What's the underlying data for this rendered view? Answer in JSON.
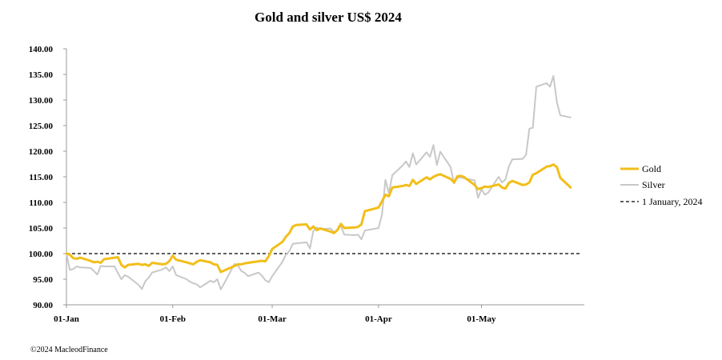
{
  "chart_data": {
    "type": "line",
    "title": "Gold and silver  US$ 2024",
    "xlabel": "",
    "ylabel": "",
    "ylim": [
      90,
      140
    ],
    "yticks": [
      "90.00",
      "95.00",
      "100.00",
      "105.00",
      "110.00",
      "115.00",
      "120.00",
      "125.00",
      "130.00",
      "135.00",
      "140.00"
    ],
    "xticks": [
      {
        "label": "01-Jan",
        "date": "2024-01-01"
      },
      {
        "label": "01-Feb",
        "date": "2024-02-01"
      },
      {
        "label": "01-Mar",
        "date": "2024-03-01"
      },
      {
        "label": "01-Apr",
        "date": "2024-04-01"
      },
      {
        "label": "01-May",
        "date": "2024-05-01"
      }
    ],
    "xlim": [
      "2024-01-01",
      "2024-05-31"
    ],
    "grid": false,
    "legend_position": "right",
    "series": [
      {
        "name": "Gold",
        "color": "#F2BE19",
        "points": [
          [
            "2024-01-01",
            100.0
          ],
          [
            "2024-01-02",
            99.8
          ],
          [
            "2024-01-03",
            99.1
          ],
          [
            "2024-01-04",
            99.0
          ],
          [
            "2024-01-05",
            99.2
          ],
          [
            "2024-01-08",
            98.6
          ],
          [
            "2024-01-09",
            98.3
          ],
          [
            "2024-01-10",
            98.4
          ],
          [
            "2024-01-11",
            98.2
          ],
          [
            "2024-01-12",
            98.9
          ],
          [
            "2024-01-15",
            99.2
          ],
          [
            "2024-01-16",
            99.3
          ],
          [
            "2024-01-17",
            97.8
          ],
          [
            "2024-01-18",
            97.3
          ],
          [
            "2024-01-19",
            97.8
          ],
          [
            "2024-01-22",
            98.0
          ],
          [
            "2024-01-23",
            97.8
          ],
          [
            "2024-01-24",
            97.9
          ],
          [
            "2024-01-25",
            97.6
          ],
          [
            "2024-01-26",
            98.2
          ],
          [
            "2024-01-29",
            97.9
          ],
          [
            "2024-01-30",
            98.0
          ],
          [
            "2024-01-31",
            98.5
          ],
          [
            "2024-02-01",
            99.6
          ],
          [
            "2024-02-02",
            98.8
          ],
          [
            "2024-02-05",
            98.3
          ],
          [
            "2024-02-06",
            98.1
          ],
          [
            "2024-02-07",
            97.9
          ],
          [
            "2024-02-08",
            98.4
          ],
          [
            "2024-02-09",
            98.7
          ],
          [
            "2024-02-12",
            98.3
          ],
          [
            "2024-02-13",
            97.9
          ],
          [
            "2024-02-14",
            97.8
          ],
          [
            "2024-02-15",
            96.4
          ],
          [
            "2024-02-16",
            96.7
          ],
          [
            "2024-02-19",
            97.6
          ],
          [
            "2024-02-20",
            97.9
          ],
          [
            "2024-02-21",
            97.9
          ],
          [
            "2024-02-22",
            98.1
          ],
          [
            "2024-02-23",
            98.2
          ],
          [
            "2024-02-26",
            98.5
          ],
          [
            "2024-02-27",
            98.6
          ],
          [
            "2024-02-28",
            98.5
          ],
          [
            "2024-02-29",
            99.5
          ],
          [
            "2024-03-01",
            100.9
          ],
          [
            "2024-03-04",
            102.3
          ],
          [
            "2024-03-05",
            103.3
          ],
          [
            "2024-03-06",
            104.0
          ],
          [
            "2024-03-07",
            105.3
          ],
          [
            "2024-03-08",
            105.6
          ],
          [
            "2024-03-11",
            105.7
          ],
          [
            "2024-03-12",
            104.7
          ],
          [
            "2024-03-13",
            105.3
          ],
          [
            "2024-03-14",
            104.6
          ],
          [
            "2024-03-15",
            104.9
          ],
          [
            "2024-03-18",
            104.3
          ],
          [
            "2024-03-19",
            104.0
          ],
          [
            "2024-03-20",
            104.6
          ],
          [
            "2024-03-21",
            105.8
          ],
          [
            "2024-03-22",
            105.0
          ],
          [
            "2024-03-25",
            105.1
          ],
          [
            "2024-03-26",
            105.2
          ],
          [
            "2024-03-27",
            105.7
          ],
          [
            "2024-03-28",
            108.3
          ],
          [
            "2024-04-01",
            109.0
          ],
          [
            "2024-04-02",
            110.2
          ],
          [
            "2024-04-03",
            111.5
          ],
          [
            "2024-04-04",
            111.2
          ],
          [
            "2024-04-05",
            112.9
          ],
          [
            "2024-04-08",
            113.2
          ],
          [
            "2024-04-09",
            113.4
          ],
          [
            "2024-04-10",
            113.2
          ],
          [
            "2024-04-11",
            114.4
          ],
          [
            "2024-04-12",
            113.6
          ],
          [
            "2024-04-15",
            114.9
          ],
          [
            "2024-04-16",
            114.5
          ],
          [
            "2024-04-17",
            115.0
          ],
          [
            "2024-04-18",
            115.3
          ],
          [
            "2024-04-19",
            115.5
          ],
          [
            "2024-04-22",
            114.6
          ],
          [
            "2024-04-23",
            113.9
          ],
          [
            "2024-04-24",
            115.1
          ],
          [
            "2024-04-25",
            115.2
          ],
          [
            "2024-04-26",
            114.9
          ],
          [
            "2024-04-29",
            113.4
          ],
          [
            "2024-04-30",
            112.6
          ],
          [
            "2024-05-01",
            112.8
          ],
          [
            "2024-05-02",
            113.1
          ],
          [
            "2024-05-03",
            113.0
          ],
          [
            "2024-05-06",
            113.5
          ],
          [
            "2024-05-07",
            112.9
          ],
          [
            "2024-05-08",
            112.7
          ],
          [
            "2024-05-09",
            113.8
          ],
          [
            "2024-05-10",
            114.2
          ],
          [
            "2024-05-13",
            113.4
          ],
          [
            "2024-05-14",
            113.5
          ],
          [
            "2024-05-15",
            113.9
          ],
          [
            "2024-05-16",
            115.4
          ],
          [
            "2024-05-17",
            115.7
          ],
          [
            "2024-05-20",
            117.0
          ],
          [
            "2024-05-21",
            117.1
          ],
          [
            "2024-05-22",
            117.4
          ],
          [
            "2024-05-23",
            116.9
          ],
          [
            "2024-05-24",
            114.8
          ],
          [
            "2024-05-27",
            112.9
          ]
        ]
      },
      {
        "name": "Silver",
        "color": "#C8C8C8",
        "points": [
          [
            "2024-01-01",
            100.0
          ],
          [
            "2024-01-02",
            96.8
          ],
          [
            "2024-01-03",
            97.0
          ],
          [
            "2024-01-04",
            97.5
          ],
          [
            "2024-01-05",
            97.3
          ],
          [
            "2024-01-08",
            97.2
          ],
          [
            "2024-01-09",
            96.6
          ],
          [
            "2024-01-10",
            95.9
          ],
          [
            "2024-01-11",
            97.6
          ],
          [
            "2024-01-12",
            97.5
          ],
          [
            "2024-01-15",
            97.5
          ],
          [
            "2024-01-16",
            96.2
          ],
          [
            "2024-01-17",
            95.0
          ],
          [
            "2024-01-18",
            95.8
          ],
          [
            "2024-01-19",
            95.5
          ],
          [
            "2024-01-22",
            93.9
          ],
          [
            "2024-01-23",
            93.1
          ],
          [
            "2024-01-24",
            94.6
          ],
          [
            "2024-01-25",
            95.3
          ],
          [
            "2024-01-26",
            96.3
          ],
          [
            "2024-01-29",
            96.9
          ],
          [
            "2024-01-30",
            97.3
          ],
          [
            "2024-01-31",
            96.6
          ],
          [
            "2024-02-01",
            97.5
          ],
          [
            "2024-02-02",
            95.8
          ],
          [
            "2024-02-05",
            95.0
          ],
          [
            "2024-02-06",
            94.5
          ],
          [
            "2024-02-07",
            94.2
          ],
          [
            "2024-02-08",
            94.0
          ],
          [
            "2024-02-09",
            93.4
          ],
          [
            "2024-02-12",
            94.7
          ],
          [
            "2024-02-13",
            94.4
          ],
          [
            "2024-02-14",
            95.0
          ],
          [
            "2024-02-15",
            93.0
          ],
          [
            "2024-02-16",
            94.2
          ],
          [
            "2024-02-19",
            98.0
          ],
          [
            "2024-02-20",
            97.7
          ],
          [
            "2024-02-21",
            96.6
          ],
          [
            "2024-02-22",
            96.2
          ],
          [
            "2024-02-23",
            95.6
          ],
          [
            "2024-02-26",
            96.3
          ],
          [
            "2024-02-27",
            95.7
          ],
          [
            "2024-02-28",
            94.8
          ],
          [
            "2024-02-29",
            94.4
          ],
          [
            "2024-03-01",
            95.6
          ],
          [
            "2024-03-04",
            98.4
          ],
          [
            "2024-03-05",
            99.8
          ],
          [
            "2024-03-06",
            100.5
          ],
          [
            "2024-03-07",
            101.9
          ],
          [
            "2024-03-08",
            102.0
          ],
          [
            "2024-03-11",
            102.2
          ],
          [
            "2024-03-12",
            101.0
          ],
          [
            "2024-03-13",
            104.5
          ],
          [
            "2024-03-14",
            105.1
          ],
          [
            "2024-03-15",
            104.8
          ],
          [
            "2024-03-18",
            104.9
          ],
          [
            "2024-03-19",
            104.2
          ],
          [
            "2024-03-20",
            104.6
          ],
          [
            "2024-03-21",
            105.4
          ],
          [
            "2024-03-22",
            103.7
          ],
          [
            "2024-03-25",
            103.6
          ],
          [
            "2024-03-26",
            103.7
          ],
          [
            "2024-03-27",
            102.8
          ],
          [
            "2024-03-28",
            104.5
          ],
          [
            "2024-04-01",
            105.0
          ],
          [
            "2024-04-02",
            107.6
          ],
          [
            "2024-04-03",
            114.4
          ],
          [
            "2024-04-04",
            111.8
          ],
          [
            "2024-04-05",
            115.3
          ],
          [
            "2024-04-08",
            117.2
          ],
          [
            "2024-04-09",
            118.0
          ],
          [
            "2024-04-10",
            116.9
          ],
          [
            "2024-04-11",
            119.6
          ],
          [
            "2024-04-12",
            117.4
          ],
          [
            "2024-04-15",
            119.8
          ],
          [
            "2024-04-16",
            118.9
          ],
          [
            "2024-04-17",
            121.2
          ],
          [
            "2024-04-18",
            117.3
          ],
          [
            "2024-04-19",
            119.9
          ],
          [
            "2024-04-22",
            116.9
          ],
          [
            "2024-04-23",
            113.7
          ],
          [
            "2024-04-24",
            114.8
          ],
          [
            "2024-04-25",
            114.9
          ],
          [
            "2024-04-26",
            114.7
          ],
          [
            "2024-04-29",
            114.3
          ],
          [
            "2024-04-30",
            110.9
          ],
          [
            "2024-05-01",
            112.6
          ],
          [
            "2024-05-02",
            111.5
          ],
          [
            "2024-05-03",
            111.9
          ],
          [
            "2024-05-06",
            115.0
          ],
          [
            "2024-05-07",
            113.9
          ],
          [
            "2024-05-08",
            114.5
          ],
          [
            "2024-05-09",
            117.0
          ],
          [
            "2024-05-10",
            118.4
          ],
          [
            "2024-05-13",
            118.5
          ],
          [
            "2024-05-14",
            119.3
          ],
          [
            "2024-05-15",
            124.4
          ],
          [
            "2024-05-16",
            124.6
          ],
          [
            "2024-05-17",
            132.6
          ],
          [
            "2024-05-20",
            133.3
          ],
          [
            "2024-05-21",
            132.6
          ],
          [
            "2024-05-22",
            134.7
          ],
          [
            "2024-05-23",
            129.6
          ],
          [
            "2024-05-24",
            127.0
          ],
          [
            "2024-05-27",
            126.6
          ]
        ]
      }
    ],
    "reference_line": {
      "value": 100,
      "label": "1 January, 2024",
      "color": "#000000",
      "style": "dashed"
    }
  },
  "footer": {
    "copyright": "©2024 MacleodFinance"
  }
}
